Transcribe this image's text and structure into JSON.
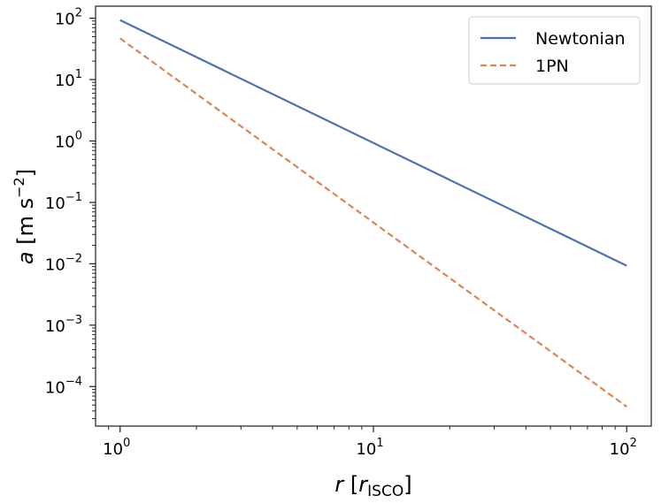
{
  "chart_data": {
    "type": "line",
    "x_scale": "log",
    "y_scale": "log",
    "xlim": [
      0.8,
      125
    ],
    "ylim": [
      2.27e-05,
      157
    ],
    "xlabel": {
      "var": "r",
      "open": " [",
      "sym": "r",
      "sub": "ISCO",
      "close": "]"
    },
    "ylabel": {
      "var": "a",
      "unit": " [m s",
      "exp": "−2",
      "close": "]"
    },
    "x_ticks": [
      {
        "value": 1,
        "base": "10",
        "exp": "0"
      },
      {
        "value": 10,
        "base": "10",
        "exp": "1"
      },
      {
        "value": 100,
        "base": "10",
        "exp": "2"
      }
    ],
    "y_ticks": [
      {
        "value": 100,
        "base": "10",
        "exp": "2"
      },
      {
        "value": 10,
        "base": "10",
        "exp": "1"
      },
      {
        "value": 1,
        "base": "10",
        "exp": "0"
      },
      {
        "value": 0.1,
        "base": "10",
        "exp": "−1"
      },
      {
        "value": 0.01,
        "base": "10",
        "exp": "−2"
      },
      {
        "value": 0.001,
        "base": "10",
        "exp": "−3"
      },
      {
        "value": 0.0001,
        "base": "10",
        "exp": "−4"
      }
    ],
    "series": [
      {
        "name": "Newtonian",
        "color": "#4c72b0",
        "style": "solid",
        "x": [
          1,
          100
        ],
        "y": [
          93,
          0.0093
        ]
      },
      {
        "name": "1PN",
        "color": "#dd8452",
        "style": "dashed",
        "x": [
          1,
          100
        ],
        "y": [
          47,
          4.7e-05
        ]
      }
    ],
    "legend": {
      "position": "top-right"
    },
    "grid": false
  }
}
